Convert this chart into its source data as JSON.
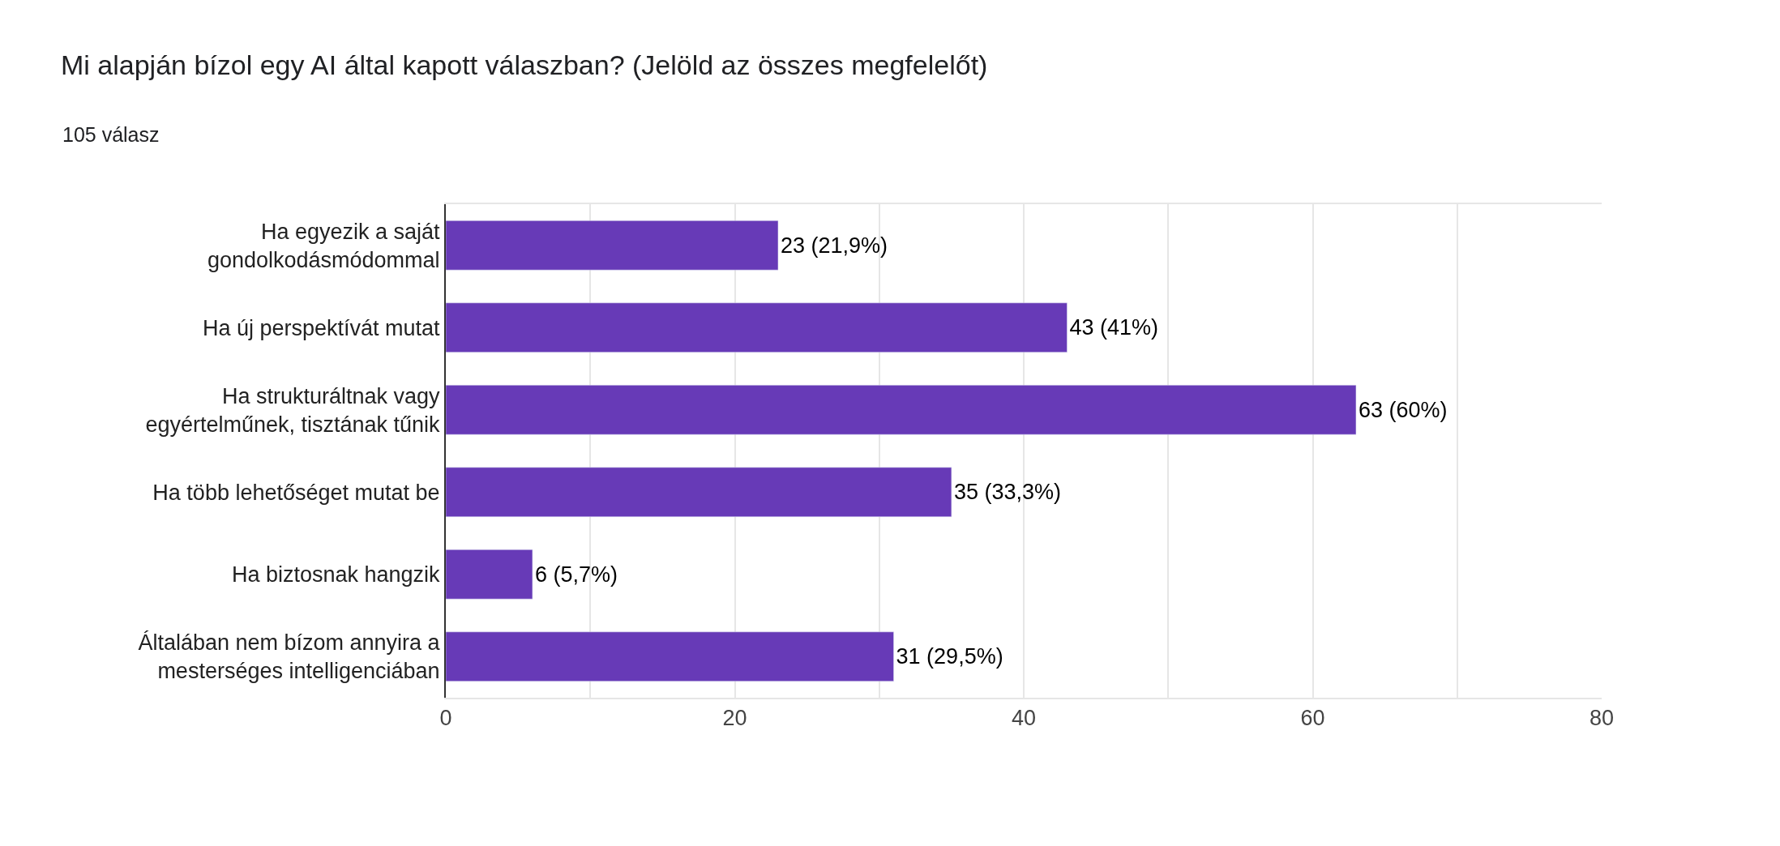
{
  "chart_data": {
    "type": "bar",
    "orientation": "horizontal",
    "title": "Mi alapján bízol egy AI által kapott válaszban? (Jelöld az összes megfelelőt)",
    "subtitle": "105 válasz",
    "categories": [
      "Ha egyezik a saját gondolkodásmódommal",
      "Ha új perspektívát mutat",
      "Ha strukturáltnak vagy egyértelműnek, tisztának tűnik",
      "Ha több lehetőséget mutat be",
      "Ha biztosnak hangzik",
      "Általában nem bízom annyira a mesterséges intelligenciában"
    ],
    "values": [
      23,
      43,
      63,
      35,
      6,
      31
    ],
    "value_labels": [
      "23 (21,9%)",
      "43 (41%)",
      "63 (60%)",
      "35 (33,3%)",
      "6 (5,7%)",
      "31 (29,5%)"
    ],
    "color": "#673ab7",
    "xlim": [
      0,
      80
    ],
    "xticks": [
      0,
      {
        "value": 10,
        "label": null
      },
      20,
      {
        "value": 30,
        "label": null
      },
      40,
      {
        "value": 50,
        "label": null
      },
      60,
      {
        "value": 70,
        "label": null
      },
      80
    ],
    "grid": "x",
    "legend": false
  }
}
